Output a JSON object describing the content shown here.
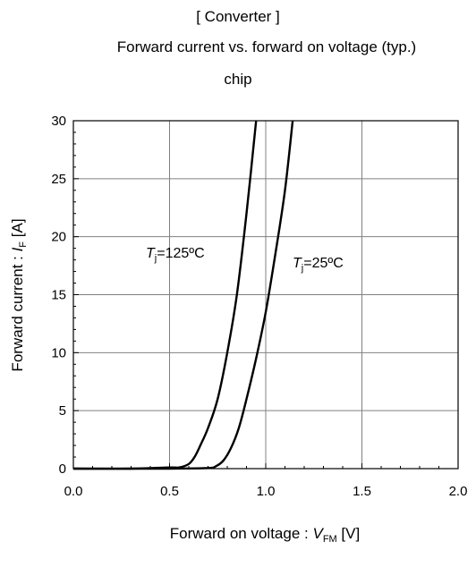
{
  "titles": {
    "line1": "[ Converter ]",
    "line2": "Forward current  vs.  forward on voltage  (typ.)",
    "line3": "chip"
  },
  "axes": {
    "x_title_main": "Forward on voltage : ",
    "x_title_var": "V",
    "x_title_sub": "FM",
    "x_title_unit": " [V]",
    "y_title_main": "Forward current : ",
    "y_title_var": "I",
    "y_title_sub": "F",
    "y_title_unit": " [A]"
  },
  "annotations": {
    "hot_var": "T",
    "hot_sub": "j",
    "hot_value": "=125ºC",
    "cold_var": "T",
    "cold_sub": "j",
    "cold_value": "=25ºC"
  },
  "colors": {
    "curve": "#000000",
    "grid": "#808080",
    "frame": "#000000"
  },
  "chart_data": {
    "type": "line",
    "title": "Forward current  vs.  forward on voltage  (typ.)",
    "xlabel": "Forward on voltage : VFM [V]",
    "ylabel": "Forward current : IF [A]",
    "xlim": [
      0,
      2
    ],
    "ylim": [
      0,
      30
    ],
    "x_ticks": [
      0,
      0.5,
      1,
      1.5,
      2
    ],
    "x_tick_labels": [
      "0.0",
      "0.5",
      "1.0",
      "1.5",
      "2.0"
    ],
    "y_ticks": [
      0,
      5,
      10,
      15,
      20,
      25,
      30
    ],
    "y_tick_labels": [
      "0",
      "5",
      "10",
      "15",
      "20",
      "25",
      "30"
    ],
    "grid": true,
    "series": [
      {
        "name": "Tj=125ºC",
        "x": [
          0,
          0.3,
          0.5,
          0.55,
          0.6,
          0.63,
          0.66,
          0.7,
          0.75,
          0.8,
          0.85,
          0.9,
          0.95
        ],
        "y": [
          0,
          0,
          0.1,
          0.1,
          0.4,
          1,
          2,
          3.5,
          6,
          10,
          15,
          22,
          30
        ]
      },
      {
        "name": "Tj=25ºC",
        "x": [
          0,
          0.5,
          0.7,
          0.74,
          0.78,
          0.82,
          0.86,
          0.9,
          0.95,
          1.0,
          1.05,
          1.1,
          1.14
        ],
        "y": [
          0,
          0,
          0.05,
          0.2,
          0.7,
          1.8,
          3.5,
          6,
          9.5,
          13.5,
          18.5,
          24,
          30
        ]
      }
    ]
  }
}
